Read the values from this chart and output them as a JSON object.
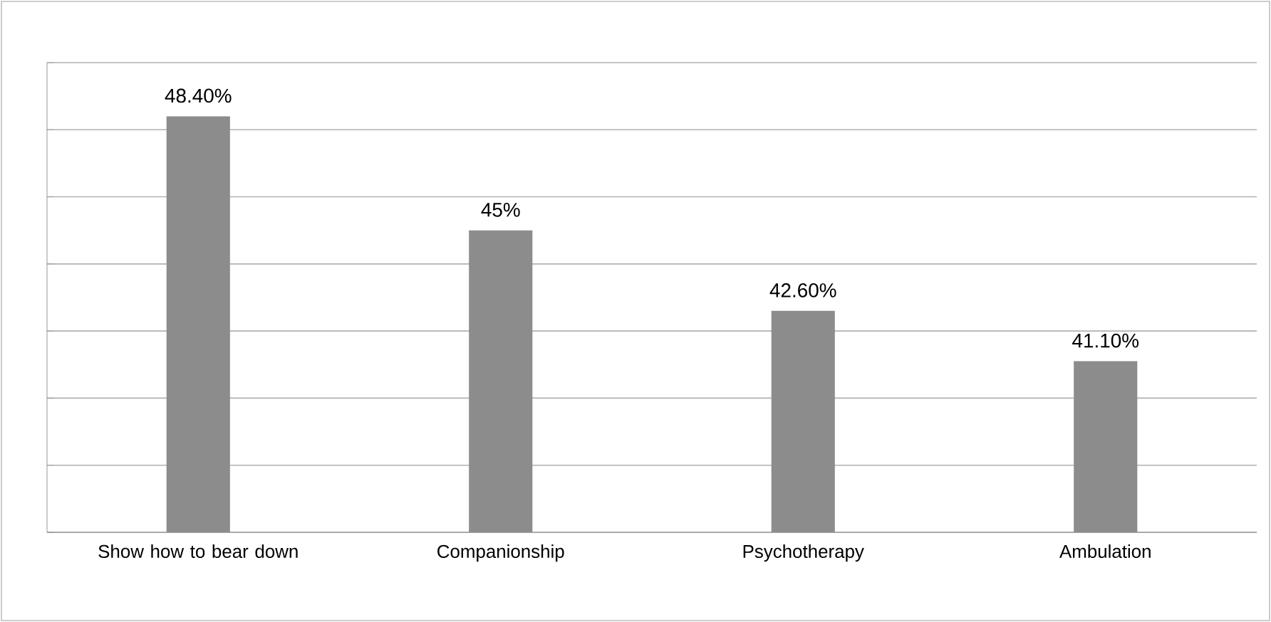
{
  "chart_data": {
    "type": "bar",
    "categories": [
      "Show how to bear down",
      "Companionship",
      "Psychotherapy",
      "Ambulation"
    ],
    "values": [
      48.4,
      45,
      42.6,
      41.1
    ],
    "value_labels": [
      "48.40%",
      "45%",
      "42.60%",
      "41.10%"
    ],
    "color": "#8c8c8c",
    "ylim": [
      36,
      50
    ],
    "yticks": [
      {
        "value": 36,
        "label": null
      },
      {
        "value": 38,
        "label": null
      },
      {
        "value": 40,
        "label": null
      },
      {
        "value": 42,
        "label": null
      },
      {
        "value": 44,
        "label": null
      },
      {
        "value": 46,
        "label": null
      },
      {
        "value": 48,
        "label": null
      },
      {
        "value": 50,
        "label": null
      }
    ],
    "tick_labels": "x",
    "grid": "y"
  }
}
